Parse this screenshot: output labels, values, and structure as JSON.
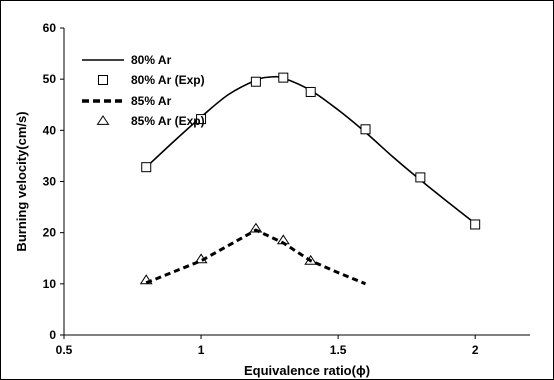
{
  "chart_data": {
    "type": "line",
    "xlabel": "Equivalence ratio(ϕ)",
    "ylabel": "Burning velocity(cm/s)",
    "xlim": [
      0.5,
      2.2
    ],
    "ylim": [
      0,
      60
    ],
    "xticks": [
      0.5,
      1,
      1.5,
      2
    ],
    "xtick_labels": [
      "0.5",
      "1",
      "1.5",
      "2"
    ],
    "yticks": [
      0,
      10,
      20,
      30,
      40,
      50,
      60
    ],
    "ytick_labels": [
      "0",
      "10",
      "20",
      "30",
      "40",
      "50",
      "60"
    ],
    "grid": false,
    "legend_position": "top-left",
    "series": [
      {
        "name": "80% Ar",
        "kind": "line",
        "style": "solid",
        "color": "#000000",
        "x": [
          0.8,
          0.9,
          1.0,
          1.1,
          1.2,
          1.25,
          1.3,
          1.4,
          1.5,
          1.6,
          1.7,
          1.8,
          1.9,
          2.0
        ],
        "y": [
          32.8,
          37.8,
          42.6,
          47.0,
          49.8,
          50.4,
          50.2,
          47.8,
          44.0,
          39.6,
          34.8,
          30.3,
          26.0,
          21.8
        ]
      },
      {
        "name": "80% Ar (Exp)",
        "kind": "scatter",
        "marker": "square",
        "color": "#000000",
        "x": [
          0.8,
          1.0,
          1.2,
          1.3,
          1.4,
          1.6,
          1.8,
          2.0
        ],
        "y": [
          32.8,
          42.2,
          49.5,
          50.3,
          47.5,
          40.2,
          30.8,
          21.6
        ]
      },
      {
        "name": "85% Ar",
        "kind": "line",
        "style": "dashed",
        "color": "#000000",
        "x": [
          0.8,
          1.0,
          1.2,
          1.3,
          1.4,
          1.5,
          1.6
        ],
        "y": [
          10.2,
          14.5,
          20.5,
          18.0,
          14.5,
          12.2,
          10.0
        ]
      },
      {
        "name": "85% Ar (Exp)",
        "kind": "scatter",
        "marker": "triangle",
        "color": "#000000",
        "x": [
          0.8,
          1.0,
          1.2,
          1.3,
          1.4
        ],
        "y": [
          10.7,
          14.8,
          20.8,
          18.5,
          14.5
        ]
      }
    ]
  }
}
